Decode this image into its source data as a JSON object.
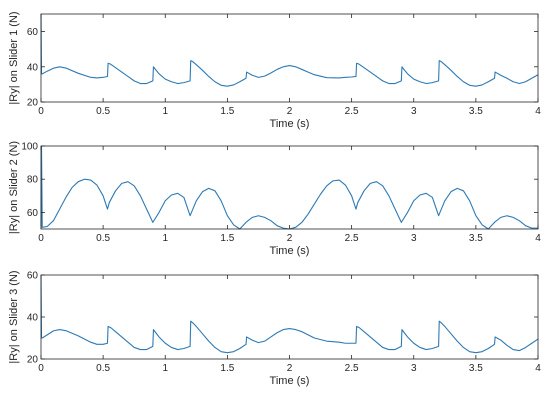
{
  "chart_data": [
    {
      "type": "line",
      "xlabel": "Time (s)",
      "ylabel": "|Ry| on Slider 1 (N)",
      "xlim": [
        0,
        4
      ],
      "ylim": [
        20,
        70
      ],
      "xticks": [
        "0",
        "0.5",
        "1",
        "1.5",
        "2",
        "2.5",
        "3",
        "3.5",
        "4"
      ],
      "yticks": [
        "20",
        "40",
        "60"
      ],
      "color": "#2d7ab5",
      "series": [
        {
          "x": [
            0,
            0.004,
            0.01,
            0.05,
            0.1,
            0.15,
            0.2,
            0.3,
            0.4,
            0.45,
            0.5,
            0.535,
            0.54,
            0.56,
            0.6,
            0.65,
            0.7,
            0.75,
            0.8,
            0.85,
            0.9,
            0.905,
            0.92,
            0.95,
            1.0,
            1.05,
            1.1,
            1.15,
            1.2,
            1.205,
            1.22,
            1.25,
            1.3,
            1.35,
            1.4,
            1.45,
            1.5,
            1.55,
            1.6,
            1.65,
            1.655,
            1.7,
            1.75,
            1.8,
            1.85,
            1.9,
            1.95,
            2.0,
            2.05,
            2.1,
            2.15,
            2.2,
            2.3,
            2.4,
            2.45,
            2.5,
            2.535,
            2.54,
            2.56,
            2.6,
            2.65,
            2.7,
            2.75,
            2.8,
            2.85,
            2.9,
            2.905,
            2.92,
            2.95,
            3.0,
            3.05,
            3.1,
            3.15,
            3.2,
            3.205,
            3.22,
            3.25,
            3.3,
            3.35,
            3.4,
            3.45,
            3.5,
            3.55,
            3.6,
            3.65,
            3.655,
            3.7,
            3.75,
            3.8,
            3.85,
            3.9,
            3.95,
            4.0
          ],
          "y": [
            70,
            36,
            36,
            37.5,
            39.2,
            40,
            39.3,
            36.3,
            34,
            33.7,
            34,
            34.5,
            42,
            41.5,
            39.5,
            37,
            34.5,
            32,
            30.5,
            30.5,
            32,
            40,
            38.6,
            36,
            33,
            31.5,
            30.5,
            31,
            32,
            43.5,
            43,
            41.2,
            38,
            34.5,
            31.5,
            29.5,
            29,
            29.7,
            31.5,
            33.5,
            37,
            35.2,
            34,
            34.7,
            36.5,
            38.5,
            40,
            40.7,
            40,
            38.5,
            37,
            35.5,
            33.8,
            33.7,
            34,
            34.2,
            34.5,
            42,
            41.5,
            39.5,
            37,
            34.5,
            32,
            30.5,
            30.5,
            32,
            40,
            38.6,
            36,
            33,
            31.5,
            30.5,
            31,
            32,
            43.5,
            43,
            41.2,
            38,
            34.5,
            31.5,
            29.5,
            29,
            29.7,
            31.5,
            33.5,
            37,
            35.2,
            33.5,
            31.5,
            30.5,
            31.5,
            33.5,
            35.5
          ]
        }
      ]
    },
    {
      "type": "line",
      "xlabel": "Time (s)",
      "ylabel": "|Ry| on Slider 2 (N)",
      "xlim": [
        0,
        4
      ],
      "ylim": [
        50,
        100
      ],
      "xticks": [
        "0",
        "0.5",
        "1",
        "1.5",
        "2",
        "2.5",
        "3",
        "3.5",
        "4"
      ],
      "yticks": [
        "60",
        "80",
        "100"
      ],
      "color": "#2d7ab5",
      "series": [
        {
          "x": [
            0,
            0.004,
            0.01,
            0.05,
            0.1,
            0.15,
            0.2,
            0.25,
            0.3,
            0.35,
            0.4,
            0.45,
            0.5,
            0.535,
            0.55,
            0.6,
            0.65,
            0.7,
            0.75,
            0.8,
            0.85,
            0.9,
            0.95,
            1.0,
            1.05,
            1.1,
            1.15,
            1.2,
            1.25,
            1.3,
            1.35,
            1.4,
            1.45,
            1.5,
            1.55,
            1.6,
            1.65,
            1.7,
            1.75,
            1.8,
            1.85,
            1.9,
            1.95,
            2.0,
            2.05,
            2.1,
            2.15,
            2.2,
            2.25,
            2.3,
            2.35,
            2.4,
            2.45,
            2.5,
            2.535,
            2.55,
            2.6,
            2.65,
            2.7,
            2.75,
            2.8,
            2.85,
            2.9,
            2.95,
            3.0,
            3.05,
            3.1,
            3.15,
            3.2,
            3.25,
            3.3,
            3.35,
            3.4,
            3.45,
            3.5,
            3.55,
            3.6,
            3.65,
            3.7,
            3.75,
            3.8,
            3.85,
            3.9,
            3.95,
            4.0
          ],
          "y": [
            52,
            100,
            51,
            51.5,
            55,
            62,
            69,
            75,
            78.5,
            80,
            79.5,
            76.5,
            70,
            62,
            66,
            73,
            77.5,
            78.5,
            76,
            70,
            62,
            54,
            60,
            67,
            70.5,
            71.5,
            69,
            58,
            67,
            72.5,
            74.5,
            73,
            67,
            58,
            52.5,
            50,
            54,
            57,
            58,
            57,
            55,
            52,
            50.5,
            50,
            51,
            54,
            59,
            65,
            71,
            76,
            79,
            79.5,
            76.5,
            70,
            62,
            66,
            73,
            77.5,
            78.5,
            76,
            70,
            62,
            54,
            60,
            67,
            70.5,
            71.5,
            69,
            58,
            67,
            72.5,
            74.5,
            73,
            67,
            58,
            52.5,
            50,
            54,
            57,
            58,
            57,
            55,
            52,
            50.5,
            50.5
          ]
        }
      ]
    },
    {
      "type": "line",
      "xlabel": "Time (s)",
      "ylabel": "|Ry| on Slider 3 (N)",
      "xlim": [
        0,
        4
      ],
      "ylim": [
        20,
        60
      ],
      "xticks": [
        "0",
        "0.5",
        "1",
        "1.5",
        "2",
        "2.5",
        "3",
        "3.5",
        "4"
      ],
      "yticks": [
        "20",
        "40",
        "60"
      ],
      "color": "#2d7ab5",
      "series": [
        {
          "x": [
            0,
            0.004,
            0.01,
            0.05,
            0.1,
            0.15,
            0.2,
            0.3,
            0.4,
            0.45,
            0.5,
            0.535,
            0.54,
            0.56,
            0.6,
            0.65,
            0.7,
            0.75,
            0.8,
            0.85,
            0.9,
            0.905,
            0.92,
            0.95,
            1.0,
            1.05,
            1.1,
            1.15,
            1.2,
            1.205,
            1.22,
            1.25,
            1.3,
            1.35,
            1.4,
            1.45,
            1.5,
            1.55,
            1.6,
            1.65,
            1.655,
            1.7,
            1.75,
            1.8,
            1.85,
            1.9,
            1.95,
            2.0,
            2.05,
            2.1,
            2.15,
            2.2,
            2.3,
            2.4,
            2.45,
            2.5,
            2.535,
            2.54,
            2.56,
            2.6,
            2.65,
            2.7,
            2.75,
            2.8,
            2.85,
            2.9,
            2.905,
            2.92,
            2.95,
            3.0,
            3.05,
            3.1,
            3.15,
            3.2,
            3.205,
            3.22,
            3.25,
            3.3,
            3.35,
            3.4,
            3.45,
            3.5,
            3.55,
            3.6,
            3.65,
            3.655,
            3.7,
            3.75,
            3.8,
            3.85,
            3.9,
            3.95,
            4.0
          ],
          "y": [
            60,
            30,
            30,
            31.5,
            33.4,
            34,
            33.5,
            31,
            28,
            27,
            27,
            27.5,
            35.5,
            35,
            33,
            30.5,
            28,
            25.5,
            24.5,
            24.5,
            26,
            34,
            32.8,
            30.5,
            27.5,
            25.5,
            24.5,
            25,
            26,
            38,
            37.3,
            35.5,
            32,
            28.5,
            25.5,
            23.5,
            23,
            23.5,
            25,
            27,
            30.5,
            29,
            27.8,
            28.5,
            30.5,
            32.5,
            34,
            34.5,
            34,
            33,
            31.5,
            30,
            28.5,
            28,
            27.5,
            27.5,
            27.5,
            35.5,
            35,
            33,
            30.5,
            28,
            25.5,
            24.5,
            24.5,
            26,
            34,
            32.8,
            30.5,
            27.5,
            25.5,
            24.5,
            25,
            26,
            38,
            37.3,
            35.5,
            32,
            28.5,
            25.5,
            23.5,
            23,
            23.5,
            25,
            27,
            30.5,
            29,
            26.5,
            24.5,
            24,
            25.5,
            27.5,
            29.5
          ]
        }
      ]
    }
  ]
}
